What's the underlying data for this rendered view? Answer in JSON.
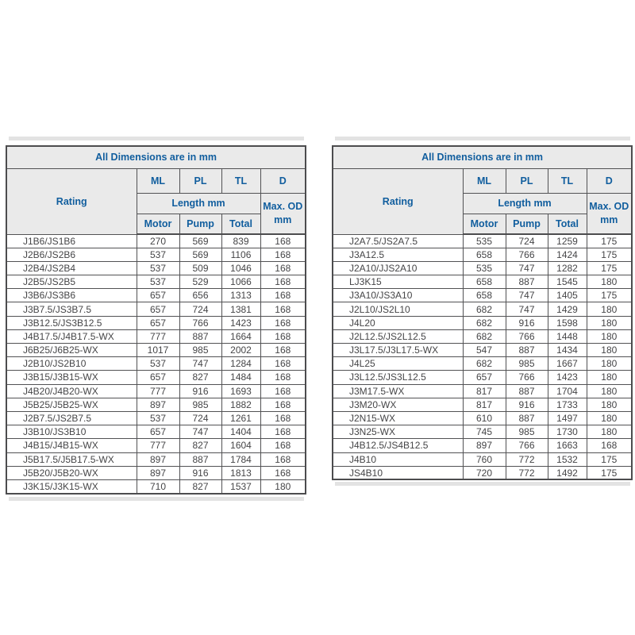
{
  "colors": {
    "header_text": "#115e9e",
    "header_background": "#eaeaea",
    "border": "#525254",
    "data_text": "#454547",
    "page_background": "#ffffff"
  },
  "tables": [
    {
      "title": "All Dimensions are in mm",
      "header": {
        "rating": "Rating",
        "ml": "ML",
        "pl": "PL",
        "tl": "TL",
        "d": "D",
        "length": "Length mm",
        "max_od_line1": "Max. OD",
        "max_od_line2": "mm",
        "motor": "Motor",
        "pump": "Pump",
        "total": "Total"
      },
      "rows": [
        [
          "J1B6/JS1B6",
          "270",
          "569",
          "839",
          "168"
        ],
        [
          "J2B6/JS2B6",
          "537",
          "569",
          "1106",
          "168"
        ],
        [
          "J2B4/JS2B4",
          "537",
          "509",
          "1046",
          "168"
        ],
        [
          "J2B5/JS2B5",
          "537",
          "529",
          "1066",
          "168"
        ],
        [
          "J3B6/JS3B6",
          "657",
          "656",
          "1313",
          "168"
        ],
        [
          "J3B7.5/JS3B7.5",
          "657",
          "724",
          "1381",
          "168"
        ],
        [
          "J3B12.5/JS3B12.5",
          "657",
          "766",
          "1423",
          "168"
        ],
        [
          "J4B17.5/J4B17.5-WX",
          "777",
          "887",
          "1664",
          "168"
        ],
        [
          "J6B25/J6B25-WX",
          "1017",
          "985",
          "2002",
          "168"
        ],
        [
          "J2B10/JS2B10",
          "537",
          "747",
          "1284",
          "168"
        ],
        [
          "J3B15/J3B15-WX",
          "657",
          "827",
          "1484",
          "168"
        ],
        [
          "J4B20/J4B20-WX",
          "777",
          "916",
          "1693",
          "168"
        ],
        [
          "J5B25/J5B25-WX",
          "897",
          "985",
          "1882",
          "168"
        ],
        [
          "J2B7.5/JS2B7.5",
          "537",
          "724",
          "1261",
          "168"
        ],
        [
          "J3B10/JS3B10",
          "657",
          "747",
          "1404",
          "168"
        ],
        [
          "J4B15/J4B15-WX",
          "777",
          "827",
          "1604",
          "168"
        ],
        [
          "J5B17.5/J5B17.5-WX",
          "897",
          "887",
          "1784",
          "168"
        ],
        [
          "J5B20/J5B20-WX",
          "897",
          "916",
          "1813",
          "168"
        ],
        [
          "J3K15/J3K15-WX",
          "710",
          "827",
          "1537",
          "180"
        ]
      ]
    },
    {
      "title": "All Dimensions are in mm",
      "header": {
        "rating": "Rating",
        "ml": "ML",
        "pl": "PL",
        "tl": "TL",
        "d": "D",
        "length": "Length mm",
        "max_od_line1": "Max. OD",
        "max_od_line2": "mm",
        "motor": "Motor",
        "pump": "Pump",
        "total": "Total"
      },
      "rows": [
        [
          "J2A7.5/JS2A7.5",
          "535",
          "724",
          "1259",
          "175"
        ],
        [
          "J3A12.5",
          "658",
          "766",
          "1424",
          "175"
        ],
        [
          "J2A10/JJS2A10",
          "535",
          "747",
          "1282",
          "175"
        ],
        [
          "LJ3K15",
          "658",
          "887",
          "1545",
          "180"
        ],
        [
          "J3A10/JS3A10",
          "658",
          "747",
          "1405",
          "175"
        ],
        [
          "J2L10/JS2L10",
          "682",
          "747",
          "1429",
          "180"
        ],
        [
          "J4L20",
          "682",
          "916",
          "1598",
          "180"
        ],
        [
          "J2L12.5/JS2L12.5",
          "682",
          "766",
          "1448",
          "180"
        ],
        [
          "J3L17.5/J3L17.5-WX",
          "547",
          "887",
          "1434",
          "180"
        ],
        [
          "J4L25",
          "682",
          "985",
          "1667",
          "180"
        ],
        [
          "J3L12.5/JS3L12.5",
          "657",
          "766",
          "1423",
          "180"
        ],
        [
          "J3M17.5-WX",
          "817",
          "887",
          "1704",
          "180"
        ],
        [
          "J3M20-WX",
          "817",
          "916",
          "1733",
          "180"
        ],
        [
          "J2N15-WX",
          "610",
          "887",
          "1497",
          "180"
        ],
        [
          "J3N25-WX",
          "745",
          "985",
          "1730",
          "180"
        ],
        [
          "J4B12.5/JS4B12.5",
          "897",
          "766",
          "1663",
          "168"
        ],
        [
          "J4B10",
          "760",
          "772",
          "1532",
          "175"
        ],
        [
          "JS4B10",
          "720",
          "772",
          "1492",
          "175"
        ]
      ]
    }
  ]
}
